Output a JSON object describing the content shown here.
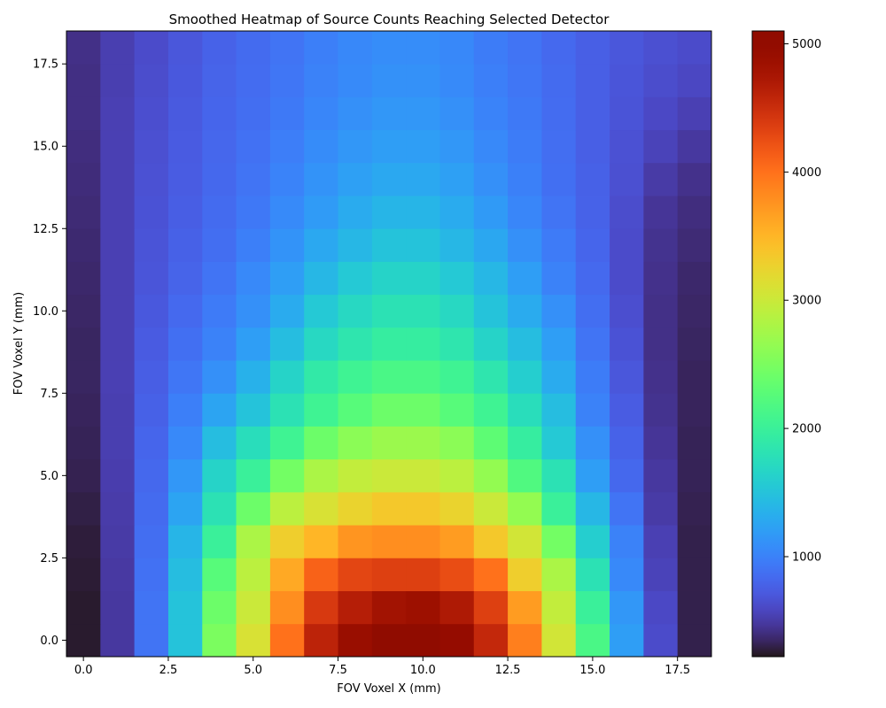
{
  "chart_data": {
    "type": "heatmap",
    "title": "Smoothed Heatmap of Source Counts Reaching Selected Detector",
    "xlabel": "FOV Voxel X (mm)",
    "ylabel": "FOV Voxel Y (mm)",
    "x_ticks": [
      "0.0",
      "2.5",
      "5.0",
      "7.5",
      "10.0",
      "12.5",
      "15.0",
      "17.5"
    ],
    "y_ticks": [
      "0.0",
      "2.5",
      "5.0",
      "7.5",
      "10.0",
      "12.5",
      "15.0",
      "17.5"
    ],
    "colorbar_ticks": [
      "1000",
      "2000",
      "3000",
      "4000",
      "5000"
    ],
    "x": [
      0,
      1,
      2,
      3,
      4,
      5,
      6,
      7,
      8,
      9,
      10,
      11,
      12,
      13,
      14,
      15,
      16,
      17,
      18
    ],
    "y": [
      0,
      1,
      2,
      3,
      4,
      5,
      6,
      7,
      8,
      9,
      10,
      11,
      12,
      13,
      14,
      15,
      16,
      17,
      18
    ],
    "xlim": [
      -0.5,
      18.5
    ],
    "ylim": [
      -0.5,
      18.5
    ],
    "vmin": 220,
    "vmax": 5100,
    "colormap": "turbo",
    "grid": false,
    "values": [
      [
        250,
        480,
        900,
        1500,
        2500,
        3100,
        4000,
        4600,
        4900,
        5050,
        5100,
        4950,
        4550,
        3900,
        3050,
        2150,
        1200,
        620,
        300
      ],
      [
        250,
        480,
        900,
        1500,
        2400,
        3000,
        3800,
        4400,
        4650,
        4800,
        4850,
        4700,
        4350,
        3700,
        2950,
        2000,
        1150,
        600,
        300
      ],
      [
        260,
        490,
        880,
        1450,
        2250,
        2900,
        3600,
        4100,
        4300,
        4350,
        4350,
        4250,
        4000,
        3300,
        2800,
        1800,
        1050,
        560,
        300
      ],
      [
        270,
        500,
        860,
        1380,
        2000,
        2800,
        3300,
        3500,
        3750,
        3800,
        3800,
        3700,
        3350,
        3050,
        2450,
        1600,
        1000,
        540,
        300
      ],
      [
        290,
        510,
        840,
        1250,
        1800,
        2400,
        2900,
        3100,
        3250,
        3350,
        3350,
        3250,
        3000,
        2650,
        2000,
        1400,
        900,
        500,
        310
      ],
      [
        310,
        520,
        820,
        1150,
        1650,
        2000,
        2450,
        2800,
        2950,
        3000,
        3000,
        2900,
        2650,
        2200,
        1800,
        1200,
        820,
        480,
        320
      ],
      [
        320,
        530,
        800,
        1050,
        1450,
        1750,
        2050,
        2400,
        2600,
        2700,
        2700,
        2600,
        2300,
        1950,
        1550,
        1100,
        780,
        460,
        320
      ],
      [
        330,
        530,
        770,
        980,
        1250,
        1500,
        1800,
        2050,
        2250,
        2400,
        2400,
        2250,
        2050,
        1750,
        1450,
        1000,
        740,
        440,
        330
      ],
      [
        340,
        540,
        750,
        920,
        1100,
        1350,
        1650,
        1900,
        2050,
        2150,
        2150,
        2050,
        1850,
        1600,
        1300,
        960,
        700,
        430,
        330
      ],
      [
        340,
        540,
        730,
        870,
        1000,
        1200,
        1450,
        1700,
        1850,
        1950,
        1950,
        1850,
        1650,
        1450,
        1200,
        900,
        670,
        420,
        340
      ],
      [
        350,
        540,
        710,
        830,
        950,
        1100,
        1300,
        1550,
        1700,
        1800,
        1800,
        1700,
        1500,
        1300,
        1100,
        860,
        640,
        420,
        350
      ],
      [
        360,
        540,
        690,
        790,
        900,
        1050,
        1200,
        1400,
        1550,
        1650,
        1650,
        1550,
        1400,
        1200,
        1000,
        830,
        620,
        430,
        360
      ],
      [
        370,
        540,
        680,
        770,
        860,
        980,
        1120,
        1280,
        1400,
        1500,
        1500,
        1400,
        1270,
        1100,
        950,
        800,
        620,
        440,
        380
      ],
      [
        380,
        540,
        670,
        750,
        840,
        930,
        1060,
        1180,
        1300,
        1380,
        1380,
        1300,
        1170,
        1030,
        900,
        780,
        630,
        460,
        400
      ],
      [
        390,
        540,
        660,
        740,
        820,
        900,
        1010,
        1120,
        1220,
        1280,
        1280,
        1220,
        1100,
        990,
        870,
        770,
        650,
        500,
        430
      ],
      [
        400,
        540,
        650,
        730,
        810,
        880,
        970,
        1070,
        1150,
        1200,
        1200,
        1150,
        1050,
        960,
        860,
        760,
        660,
        560,
        480
      ],
      [
        410,
        540,
        640,
        720,
        800,
        860,
        940,
        1030,
        1100,
        1150,
        1150,
        1100,
        1010,
        940,
        850,
        760,
        680,
        600,
        540
      ],
      [
        410,
        530,
        630,
        710,
        790,
        850,
        920,
        1000,
        1060,
        1110,
        1110,
        1060,
        980,
        920,
        840,
        760,
        690,
        630,
        590
      ],
      [
        420,
        530,
        620,
        700,
        780,
        840,
        900,
        980,
        1040,
        1080,
        1080,
        1040,
        960,
        900,
        830,
        760,
        700,
        650,
        620
      ]
    ]
  }
}
